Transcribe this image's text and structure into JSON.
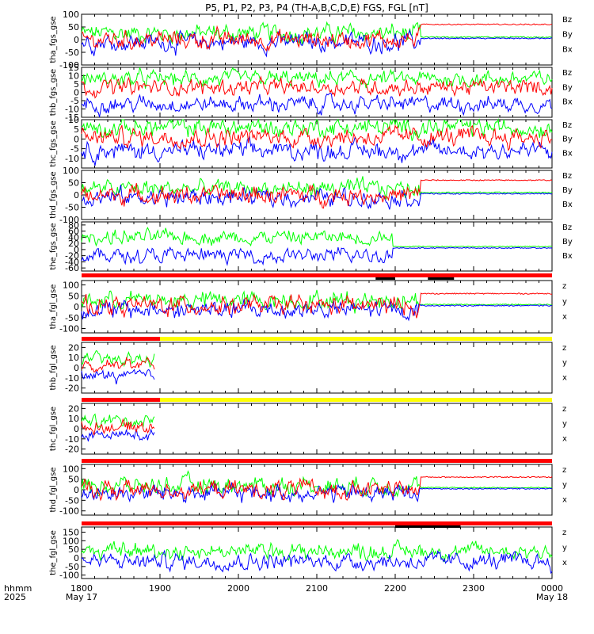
{
  "title": "P5, P1, P2, P3, P4 (TH-A,B,C,D,E) FGS, FGL [nT]",
  "time_axis": {
    "row1_label": "hhmm",
    "row2_label": "2025",
    "ticks": [
      "1800",
      "1900",
      "2000",
      "2100",
      "2200",
      "2300",
      "0000"
    ],
    "start_date": "May 17",
    "end_date": "May 18"
  },
  "chart_data": [
    {
      "type": "line",
      "ylabel": "tha_fgs_gse",
      "ylim": [
        -100,
        100
      ],
      "ticks": [
        "100",
        "50",
        "0",
        "-50",
        "-100"
      ],
      "legend": [
        "Bz",
        "By",
        "Bx"
      ],
      "legend_colors": [
        "#ff0000",
        "#00ff00",
        "#0000ff"
      ],
      "description_values": {
        "Bz_mean": 0,
        "By_mean": 25,
        "Bx_mean": -10,
        "data_end_hhmm": "2225"
      }
    },
    {
      "type": "line",
      "ylabel": "thb_fgs_gse",
      "ylim": [
        -15,
        15
      ],
      "ticks": [
        "15",
        "10",
        "5",
        "0",
        "-5",
        "-10",
        "-15"
      ],
      "legend": [
        "Bz",
        "By",
        "Bx"
      ],
      "legend_colors": [
        "#ff0000",
        "#00ff00",
        "#0000ff"
      ]
    },
    {
      "type": "line",
      "ylabel": "thc_fgs_gse",
      "ylim": [
        -15,
        10
      ],
      "ticks": [
        "10",
        "5",
        "0",
        "-5",
        "-10"
      ],
      "legend": [
        "Bz",
        "By",
        "Bx"
      ],
      "legend_colors": [
        "#ff0000",
        "#00ff00",
        "#0000ff"
      ]
    },
    {
      "type": "line",
      "ylabel": "thd_fgs_gse",
      "ylim": [
        -100,
        100
      ],
      "ticks": [
        "100",
        "50",
        "0",
        "-50",
        "-100"
      ],
      "legend": [
        "Bz",
        "By",
        "Bx"
      ],
      "legend_colors": [
        "#ff0000",
        "#00ff00",
        "#0000ff"
      ]
    },
    {
      "type": "line",
      "ylabel": "the_fgs_gse",
      "ylim": [
        -70,
        90
      ],
      "ticks": [
        "80",
        "60",
        "40",
        "20",
        "0",
        "-20",
        "-40",
        "-60"
      ],
      "legend": [
        "Bz",
        "By",
        "Bx"
      ],
      "legend_colors": [
        "#ff0000",
        "#00ff00",
        "#0000ff"
      ]
    },
    {
      "type": "line",
      "ylabel": "tha_fgl_gse",
      "ylim": [
        -120,
        120
      ],
      "ticks": [
        "100",
        "50",
        "0",
        "-50",
        "-100"
      ],
      "legend": [
        "z",
        "y",
        "x"
      ],
      "legend_colors": [
        "#ff0000",
        "#00ff00",
        "#0000ff"
      ]
    },
    {
      "type": "line",
      "ylabel": "thb_fgl_gse",
      "ylim": [
        -25,
        25
      ],
      "ticks": [
        "20",
        "10",
        "0",
        "-10",
        "-20"
      ],
      "legend": [
        "z",
        "y",
        "x"
      ],
      "legend_colors": [
        "#ff0000",
        "#00ff00",
        "#0000ff"
      ]
    },
    {
      "type": "line",
      "ylabel": "thc_fgl_gse",
      "ylim": [
        -25,
        25
      ],
      "ticks": [
        "20",
        "10",
        "0",
        "-10",
        "-20"
      ],
      "legend": [
        "z",
        "y",
        "x"
      ],
      "legend_colors": [
        "#ff0000",
        "#00ff00",
        "#0000ff"
      ]
    },
    {
      "type": "line",
      "ylabel": "thd_fgl_gse",
      "ylim": [
        -120,
        120
      ],
      "ticks": [
        "100",
        "50",
        "0",
        "-50",
        "-100"
      ],
      "legend": [
        "z",
        "y",
        "x"
      ],
      "legend_colors": [
        "#ff0000",
        "#00ff00",
        "#0000ff"
      ]
    },
    {
      "type": "line",
      "ylabel": "the_fgl_gse",
      "ylim": [
        -120,
        180
      ],
      "ticks": [
        "150",
        "100",
        "50",
        "0",
        "-50",
        "-100"
      ],
      "legend": [
        "z",
        "y",
        "x"
      ],
      "legend_colors": [
        "#ff0000",
        "#00ff00",
        "#0000ff"
      ]
    }
  ],
  "status_bars": [
    {
      "above_panel": 6,
      "segments": [
        {
          "from": "1800",
          "to": "0000",
          "color": "#ff0000"
        }
      ],
      "black_marks": [
        [
          "2145",
          "2200"
        ],
        [
          "2225",
          "2245"
        ]
      ]
    },
    {
      "above_panel": 7,
      "segments": [
        {
          "from": "1800",
          "to": "1900",
          "color": "#ff0000"
        },
        {
          "from": "1900",
          "to": "0000",
          "color": "#ffff00"
        }
      ]
    },
    {
      "above_panel": 8,
      "segments": [
        {
          "from": "1800",
          "to": "1900",
          "color": "#ff0000"
        },
        {
          "from": "1900",
          "to": "0000",
          "color": "#ffff00"
        }
      ]
    },
    {
      "above_panel": 9,
      "segments": [
        {
          "from": "1800",
          "to": "0000",
          "color": "#ff0000"
        }
      ]
    },
    {
      "above_panel": 10,
      "segments": [
        {
          "from": "1800",
          "to": "0000",
          "color": "#ff0000"
        }
      ],
      "black_marks": [
        [
          "2200",
          "2250"
        ]
      ]
    }
  ]
}
